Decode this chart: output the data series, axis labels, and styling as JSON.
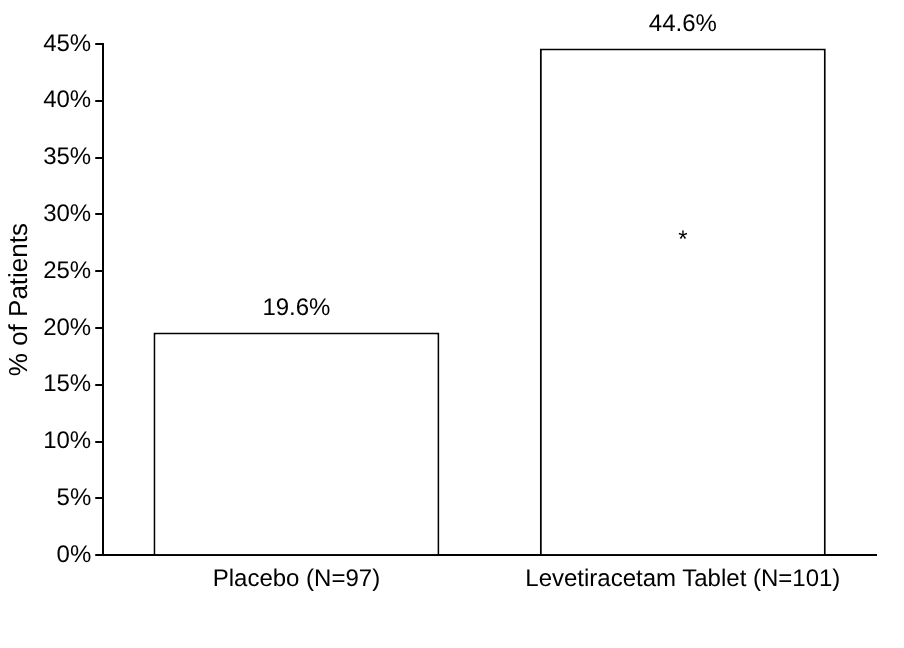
{
  "chart_data": {
    "type": "bar",
    "ylabel": "% of Patients",
    "categories": [
      "Placebo (N=97)",
      "Levetiracetam Tablet (N=101)"
    ],
    "values": [
      19.6,
      44.6
    ],
    "color": "#ffffff",
    "value_labels": [
      "19.6%",
      "44.6%"
    ],
    "ylim": [
      0,
      45
    ],
    "yticks": [
      {
        "value": 0,
        "label": "0%"
      },
      {
        "value": 5,
        "label": "5%"
      },
      {
        "value": 10,
        "label": "10%"
      },
      {
        "value": 15,
        "label": "15%"
      },
      {
        "value": 20,
        "label": "20%"
      },
      {
        "value": 25,
        "label": "25%"
      },
      {
        "value": 30,
        "label": "30%"
      },
      {
        "value": 35,
        "label": "35%"
      },
      {
        "value": 40,
        "label": "40%"
      },
      {
        "value": 45,
        "label": "45%"
      }
    ],
    "annotations": [
      "*"
    ],
    "grid": false,
    "legend": false
  }
}
